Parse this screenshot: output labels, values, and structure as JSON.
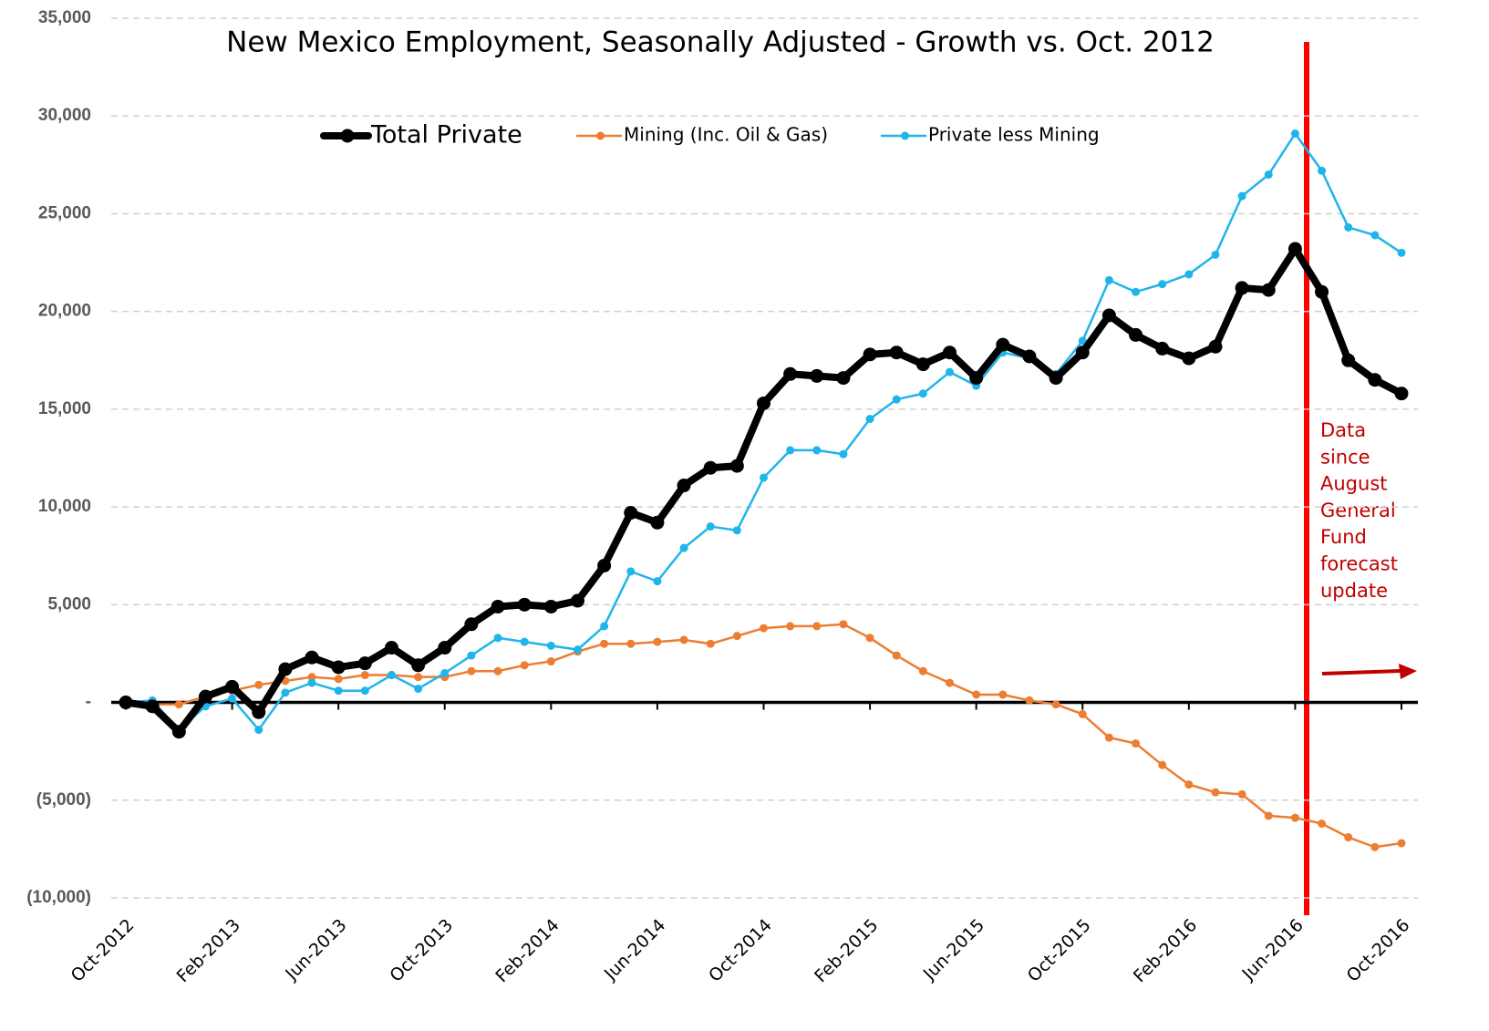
{
  "chart_data": {
    "type": "line",
    "title": "New Mexico Employment, Seasonally Adjusted - Growth vs. Oct. 2012",
    "annotation": [
      "Data",
      "since",
      "August",
      "General",
      "Fund",
      "forecast",
      "update"
    ],
    "categories": [
      "Oct-2012",
      null,
      null,
      null,
      "Feb-2013",
      null,
      null,
      null,
      "Jun-2013",
      null,
      null,
      null,
      "Oct-2013",
      null,
      null,
      null,
      "Feb-2014",
      null,
      null,
      null,
      "Jun-2014",
      null,
      null,
      null,
      "Oct-2014",
      null,
      null,
      null,
      "Feb-2015",
      null,
      null,
      null,
      "Jun-2015",
      null,
      null,
      null,
      "Oct-2015",
      null,
      null,
      null,
      "Feb-2016",
      null,
      null,
      null,
      "Jun-2016",
      null,
      null,
      null,
      "Oct-2016"
    ],
    "series": [
      {
        "name": "Total Private",
        "color": "#000000",
        "values": [
          0,
          -200,
          -1500,
          300,
          800,
          -500,
          1700,
          2300,
          1800,
          2000,
          2800,
          1900,
          2800,
          4000,
          4900,
          5000,
          4900,
          5200,
          7000,
          9700,
          9200,
          11100,
          12000,
          12100,
          15300,
          16800,
          16700,
          16600,
          17800,
          17900,
          17300,
          17900,
          16600,
          18300,
          17700,
          16600,
          17900,
          19800,
          18800,
          18100,
          17600,
          18200,
          21200,
          21100,
          23200,
          21000,
          17500,
          16500,
          15800
        ]
      },
      {
        "name": "Mining (Inc. Oil & Gas)",
        "color": "#ed7d31",
        "values": [
          0,
          -100,
          -100,
          300,
          600,
          900,
          1100,
          1300,
          1200,
          1400,
          1400,
          1300,
          1300,
          1600,
          1600,
          1900,
          2100,
          2600,
          3000,
          3000,
          3100,
          3200,
          3000,
          3400,
          3800,
          3900,
          3900,
          4000,
          3300,
          2400,
          1600,
          1000,
          400,
          400,
          100,
          -100,
          -600,
          -1800,
          -2100,
          -3200,
          -4200,
          -4600,
          -4700,
          -5800,
          -5900,
          -6200,
          -6900,
          -7400,
          -7200
        ]
      },
      {
        "name": "Private less Mining",
        "color": "#1fb5ea",
        "values": [
          0,
          100,
          -1400,
          -200,
          200,
          -1400,
          500,
          1000,
          600,
          600,
          1400,
          700,
          1500,
          2400,
          3300,
          3100,
          2900,
          2700,
          3900,
          6700,
          6200,
          7900,
          9000,
          8800,
          11500,
          12900,
          12900,
          12700,
          14500,
          15500,
          15800,
          16900,
          16200,
          17900,
          17600,
          16800,
          18500,
          21600,
          21000,
          21400,
          21900,
          22900,
          25900,
          27000,
          29100,
          27200,
          24300,
          23900,
          23000
        ]
      }
    ],
    "ylim": [
      -10000,
      35000
    ],
    "yticks": [
      {
        "value": -10000,
        "label": "(10,000)"
      },
      {
        "value": -5000,
        "label": "(5,000)"
      },
      {
        "value": 0,
        "label": "-"
      },
      {
        "value": 5000,
        "label": "5,000"
      },
      {
        "value": 10000,
        "label": "10,000"
      },
      {
        "value": 15000,
        "label": "15,000"
      },
      {
        "value": 20000,
        "label": "20,000"
      },
      {
        "value": 25000,
        "label": "25,000"
      },
      {
        "value": 30000,
        "label": "30,000"
      },
      {
        "value": 35000,
        "label": "35,000"
      }
    ],
    "grid": true
  }
}
